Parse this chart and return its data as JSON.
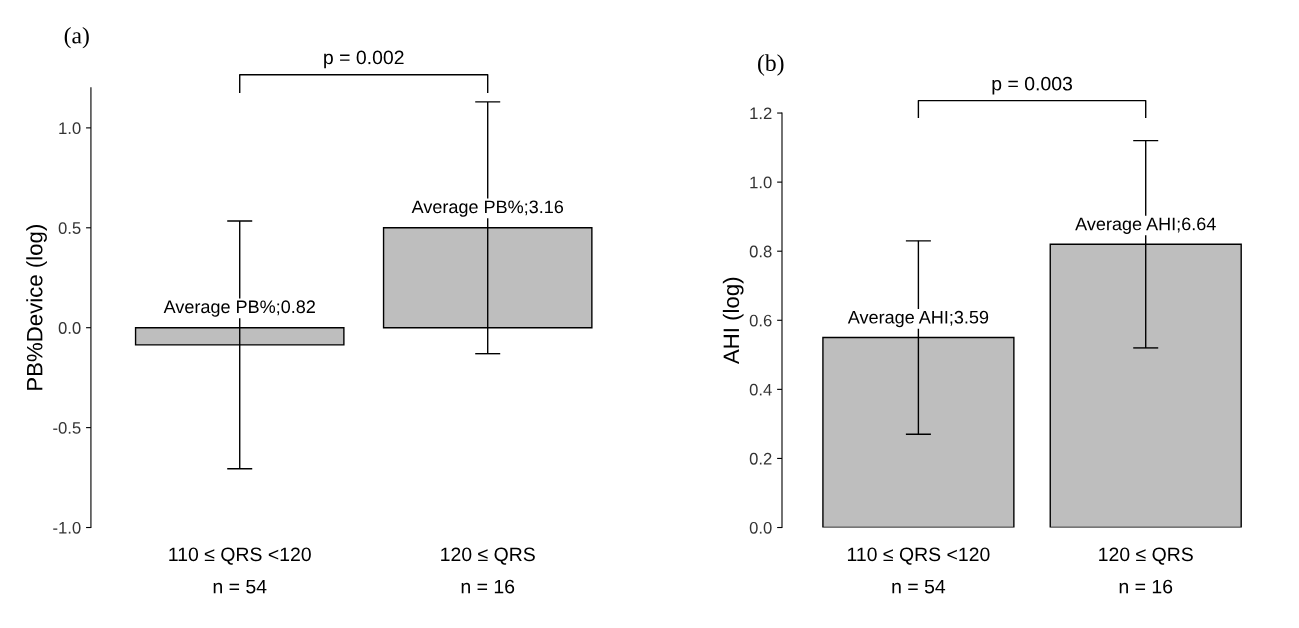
{
  "chart_data": [
    {
      "type": "bar",
      "title": "(a)",
      "ylabel": "PB%Device (log)",
      "categories": [
        "110 ≤ QRS <120\nn = 54",
        "120 ≤ QRS\nn = 16"
      ],
      "series": [
        {
          "color": "#bebebe",
          "values": [
            -0.086,
            0.5
          ],
          "errors": [
            0.62,
            0.63
          ]
        }
      ],
      "ylim": [
        -1.0,
        1.2
      ],
      "yticks": [
        {
          "value": -1.0,
          "label": "-1.0"
        },
        {
          "value": -0.5,
          "label": "-0.5"
        },
        {
          "value": 0.0,
          "label": "0.0"
        },
        {
          "value": 0.5,
          "label": "0.5"
        },
        {
          "value": 1.0,
          "label": "1.0"
        }
      ],
      "annotations": [
        "p = 0.002",
        {
          "text": "Average PB%;0.82",
          "x": "110 ≤ QRS <120\nn = 54",
          "y": -0.086
        },
        {
          "text": "Average PB%;3.16",
          "x": "120 ≤ QRS\nn = 16",
          "y": 0.5
        }
      ],
      "grid": false
    },
    {
      "type": "bar",
      "title": "(b)",
      "ylabel": "AHI (log)",
      "categories": [
        "110 ≤ QRS <120\nn = 54",
        "120 ≤ QRS\nn = 16"
      ],
      "series": [
        {
          "color": "#bebebe",
          "values": [
            0.55,
            0.82
          ],
          "errors": [
            0.28,
            0.3
          ]
        }
      ],
      "ylim": [
        0.0,
        1.2
      ],
      "yticks": [
        {
          "value": 0.0,
          "label": "0.0"
        },
        {
          "value": 0.2,
          "label": "0.2"
        },
        {
          "value": 0.4,
          "label": "0.4"
        },
        {
          "value": 0.6,
          "label": "0.6"
        },
        {
          "value": 0.8,
          "label": "0.8"
        },
        {
          "value": 1.0,
          "label": "1.0"
        },
        {
          "value": 1.2,
          "label": "1.2"
        }
      ],
      "annotations": [
        "p = 0.003",
        {
          "text": "Average AHI;3.59",
          "x": "110 ≤ QRS <120\nn = 54",
          "y": 0.55
        },
        {
          "text": "Average AHI;6.64",
          "x": "120 ≤ QRS\nn = 16",
          "y": 0.82
        }
      ],
      "grid": false
    }
  ]
}
